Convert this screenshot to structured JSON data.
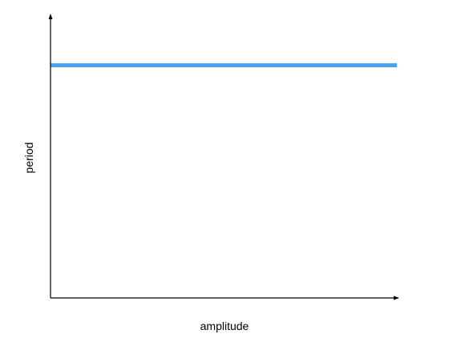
{
  "chart_data": {
    "type": "line",
    "xlabel": "amplitude",
    "ylabel": "period",
    "x": [
      0,
      1
    ],
    "series": [
      {
        "values": [
          0.83,
          0.83
        ]
      }
    ],
    "xlim": [
      0,
      1
    ],
    "ylim": [
      0,
      1
    ],
    "grid": false,
    "colors": {
      "line": "#4aa3ef",
      "axis": "#000000"
    }
  }
}
